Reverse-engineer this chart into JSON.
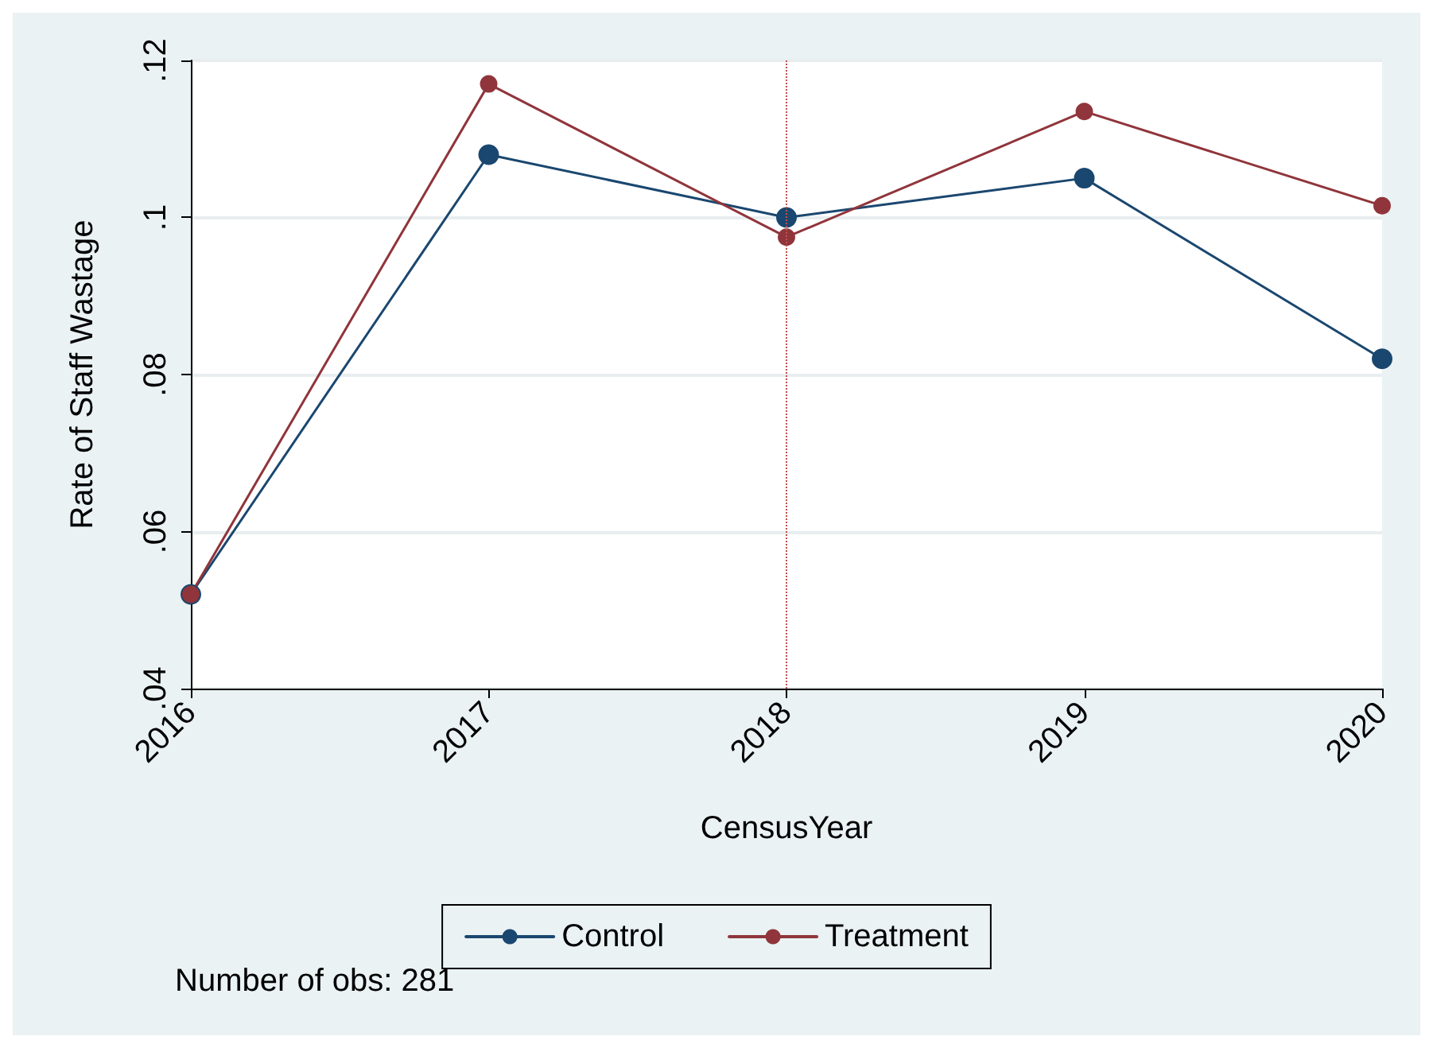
{
  "chart_data": {
    "type": "line",
    "xlabel": "CensusYear",
    "ylabel": "Rate of Staff Wastage",
    "x": [
      2016,
      2017,
      2018,
      2019,
      2020
    ],
    "series": [
      {
        "name": "Control",
        "color": "#1a476f",
        "values": [
          0.052,
          0.108,
          0.1,
          0.105,
          0.082
        ]
      },
      {
        "name": "Treatment",
        "color": "#90353b",
        "values": [
          0.052,
          0.117,
          0.0975,
          0.1135,
          0.1015
        ]
      }
    ],
    "xlim": [
      2016,
      2020
    ],
    "xticks": [
      2016,
      2017,
      2018,
      2019,
      2020
    ],
    "ylim": [
      0.04,
      0.12
    ],
    "yticks": [
      {
        "value": 0.04,
        "label": ".04"
      },
      {
        "value": 0.06,
        "label": ".06"
      },
      {
        "value": 0.08,
        "label": ".08"
      },
      {
        "value": 0.1,
        "label": ".1"
      },
      {
        "value": 0.12,
        "label": ".12"
      }
    ],
    "ref_lines": [
      {
        "axis": "x",
        "value": 2018,
        "color": "#c0504d",
        "line_style": "dotted"
      }
    ],
    "annotations": [
      "Number of obs: 281"
    ],
    "grid": "y",
    "legend": "bottom",
    "marker": "circle",
    "line_style": "solid"
  }
}
